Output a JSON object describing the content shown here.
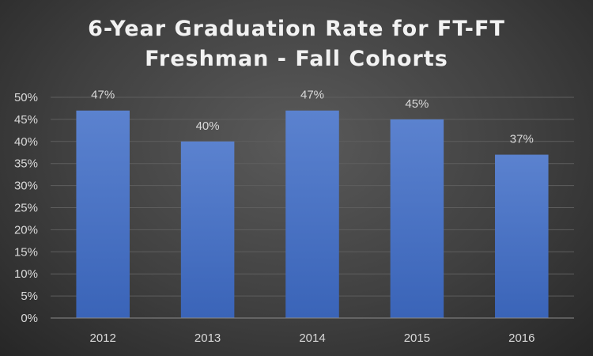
{
  "chart_data": {
    "type": "bar",
    "title": "6-Year Graduation Rate for FT-FT\nFreshman - Fall Cohorts",
    "categories": [
      "2012",
      "2013",
      "2014",
      "2015",
      "2016"
    ],
    "values": [
      47,
      40,
      47,
      45,
      37
    ],
    "data_labels": [
      "47%",
      "40%",
      "47%",
      "45%",
      "37%"
    ],
    "y_ticks": [
      "0%",
      "5%",
      "10%",
      "15%",
      "20%",
      "25%",
      "30%",
      "35%",
      "40%",
      "45%",
      "50%"
    ],
    "ylim": [
      0,
      50
    ],
    "y_unit": "%",
    "xlabel": "",
    "ylabel": "",
    "grid": true,
    "legend": "none",
    "colors": {
      "bar_top": "#5b82cf",
      "bar_bottom": "#3a64b8"
    }
  }
}
